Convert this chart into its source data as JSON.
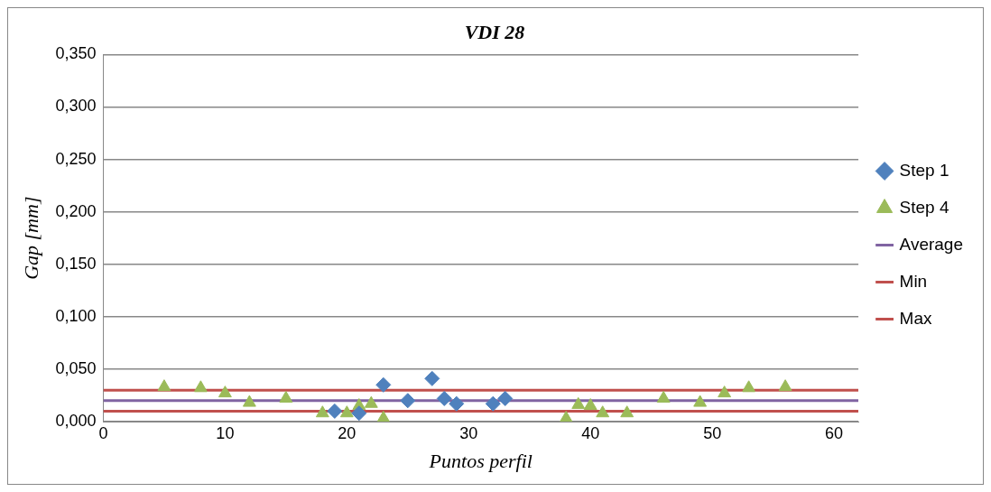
{
  "chart_data": {
    "type": "scatter",
    "title": "VDI 28",
    "xlabel": "Puntos perfil",
    "ylabel": "Gap [mm]",
    "xlim": [
      0,
      62
    ],
    "xticks": [
      0,
      10,
      20,
      30,
      40,
      50,
      60
    ],
    "ylim": [
      0,
      0.35
    ],
    "yticks": [
      {
        "value": 0,
        "label": "0,000"
      },
      {
        "value": 0.05,
        "label": "0,050"
      },
      {
        "value": 0.1,
        "label": "0,100"
      },
      {
        "value": 0.15,
        "label": "0,150"
      },
      {
        "value": 0.2,
        "label": "0,200"
      },
      {
        "value": 0.25,
        "label": "0,250"
      },
      {
        "value": 0.3,
        "label": "0,300"
      },
      {
        "value": 0.35,
        "label": "0,350"
      }
    ],
    "grid": "y",
    "legend": "right",
    "series": [
      {
        "name": "Step 1",
        "marker": "diamond",
        "color": "#4f81bd",
        "x": [
          19,
          21,
          23,
          25,
          27,
          28,
          29,
          32,
          33
        ],
        "values": [
          0.01,
          0.008,
          0.035,
          0.02,
          0.041,
          0.022,
          0.017,
          0.017,
          0.022
        ]
      },
      {
        "name": "Step 4",
        "marker": "triangle",
        "color": "#9bbb59",
        "x": [
          5,
          8,
          10,
          12,
          15,
          18,
          20,
          21,
          22,
          23,
          38,
          39,
          40,
          41,
          43,
          46,
          49,
          51,
          53,
          56
        ],
        "values": [
          0.033,
          0.032,
          0.027,
          0.018,
          0.022,
          0.008,
          0.008,
          0.015,
          0.017,
          0.003,
          0.003,
          0.016,
          0.015,
          0.008,
          0.008,
          0.022,
          0.018,
          0.027,
          0.032,
          0.033
        ]
      },
      {
        "name": "Average",
        "type": "line",
        "marker": "none",
        "color": "#8064a2",
        "x": [
          0,
          62
        ],
        "values": [
          0.02,
          0.02
        ]
      },
      {
        "name": "Min",
        "type": "line",
        "marker": "none",
        "color": "#c0504d",
        "x": [
          0,
          62
        ],
        "values": [
          0.01,
          0.01
        ]
      },
      {
        "name": "Max",
        "type": "line",
        "marker": "none",
        "color": "#c0504d",
        "x": [
          0,
          62
        ],
        "values": [
          0.03,
          0.03
        ]
      }
    ]
  }
}
